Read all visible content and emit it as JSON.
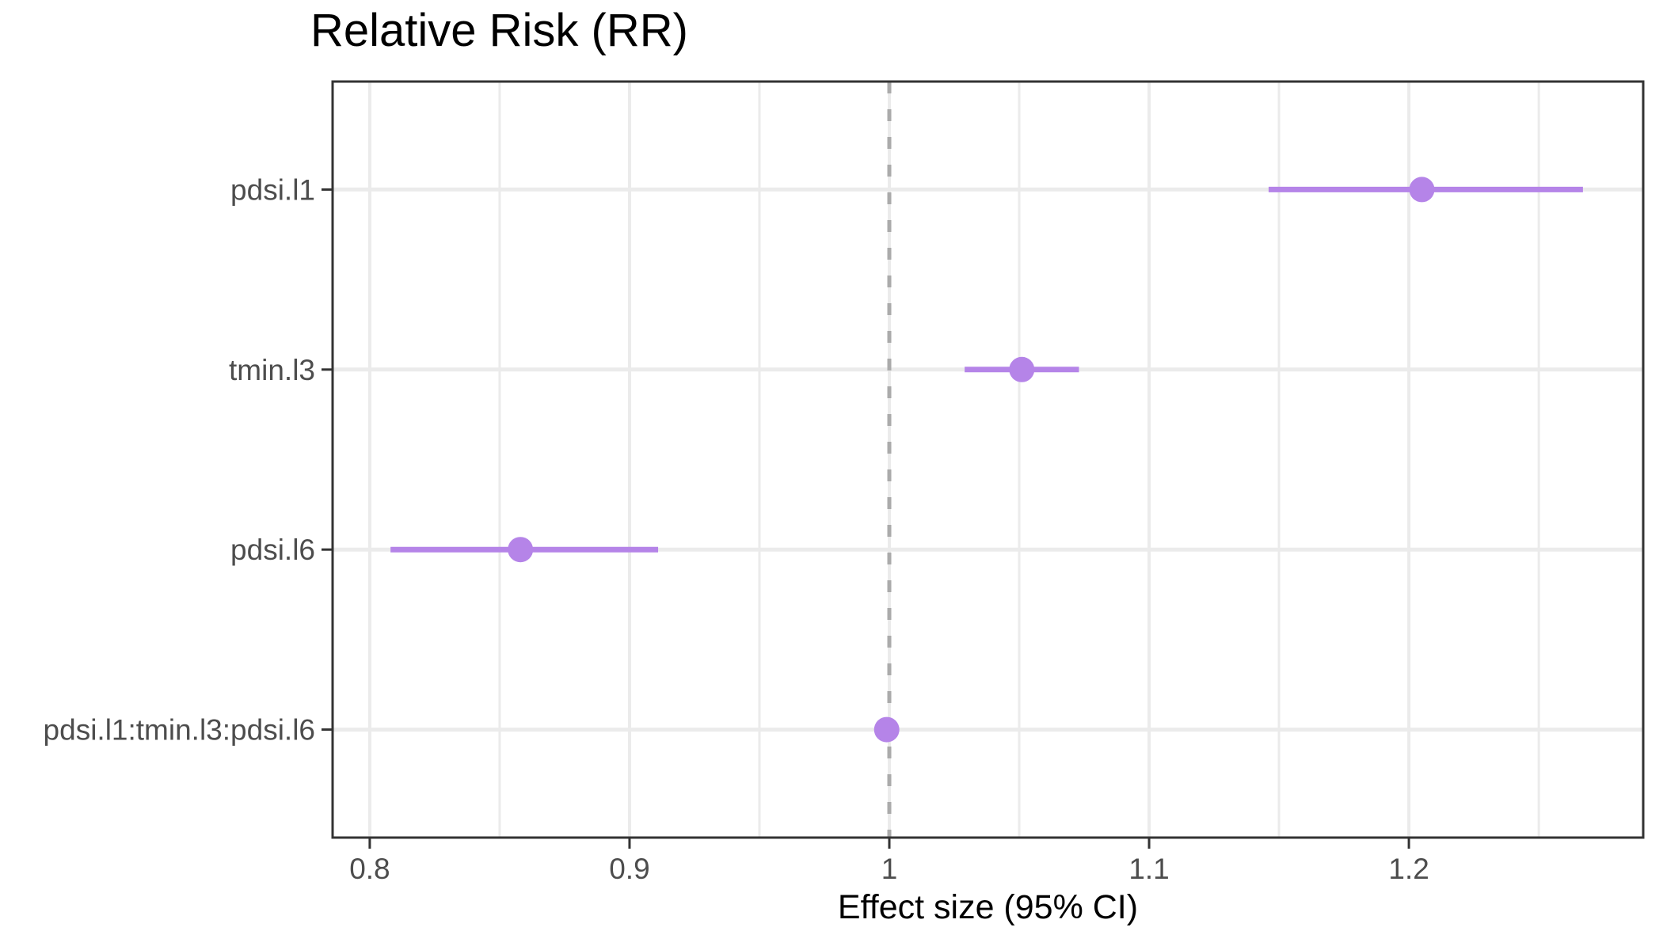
{
  "chart_data": {
    "type": "scatter",
    "subtype": "forest-plot-with-95ci-error-bars",
    "title": "Relative Risk (RR)",
    "xlabel": "Effect size (95% CI)",
    "ylabel": "",
    "categories": [
      "pdsi.l1",
      "tmin.l3",
      "pdsi.l6",
      "pdsi.l1:tmin.l3:pdsi.l6"
    ],
    "series": [
      {
        "name": "Relative Risk (RR)",
        "values": [
          1.205,
          1.051,
          0.858,
          0.999
        ],
        "ci_lower": [
          1.146,
          1.029,
          0.808,
          0.996
        ],
        "ci_upper": [
          1.267,
          1.073,
          0.911,
          1.002
        ]
      }
    ],
    "reference_line_x": 1,
    "reference_line_style": "dashed",
    "xlim": [
      0.7857,
      1.2902
    ],
    "x_ticks": [
      0.8,
      0.9,
      1,
      1.1,
      1.2
    ],
    "x_tick_labels": [
      "0.8",
      "0.9",
      "1",
      "1.1",
      "1.2"
    ],
    "x_minor_ticks": [
      0.85,
      0.95,
      1.05,
      1.15,
      1.25
    ],
    "grid": true,
    "legend": false,
    "legend_position": "none",
    "colors": {
      "point": "#B584E8",
      "ci_line": "#B584E8",
      "reference_line": "#ABABAB",
      "gridline": "#EBEBEB",
      "panel_border": "#333333",
      "tick_mark": "#333333",
      "axis_text": "#4D4D4D",
      "title_text": "#000000",
      "background": "#FFFFFF"
    }
  }
}
